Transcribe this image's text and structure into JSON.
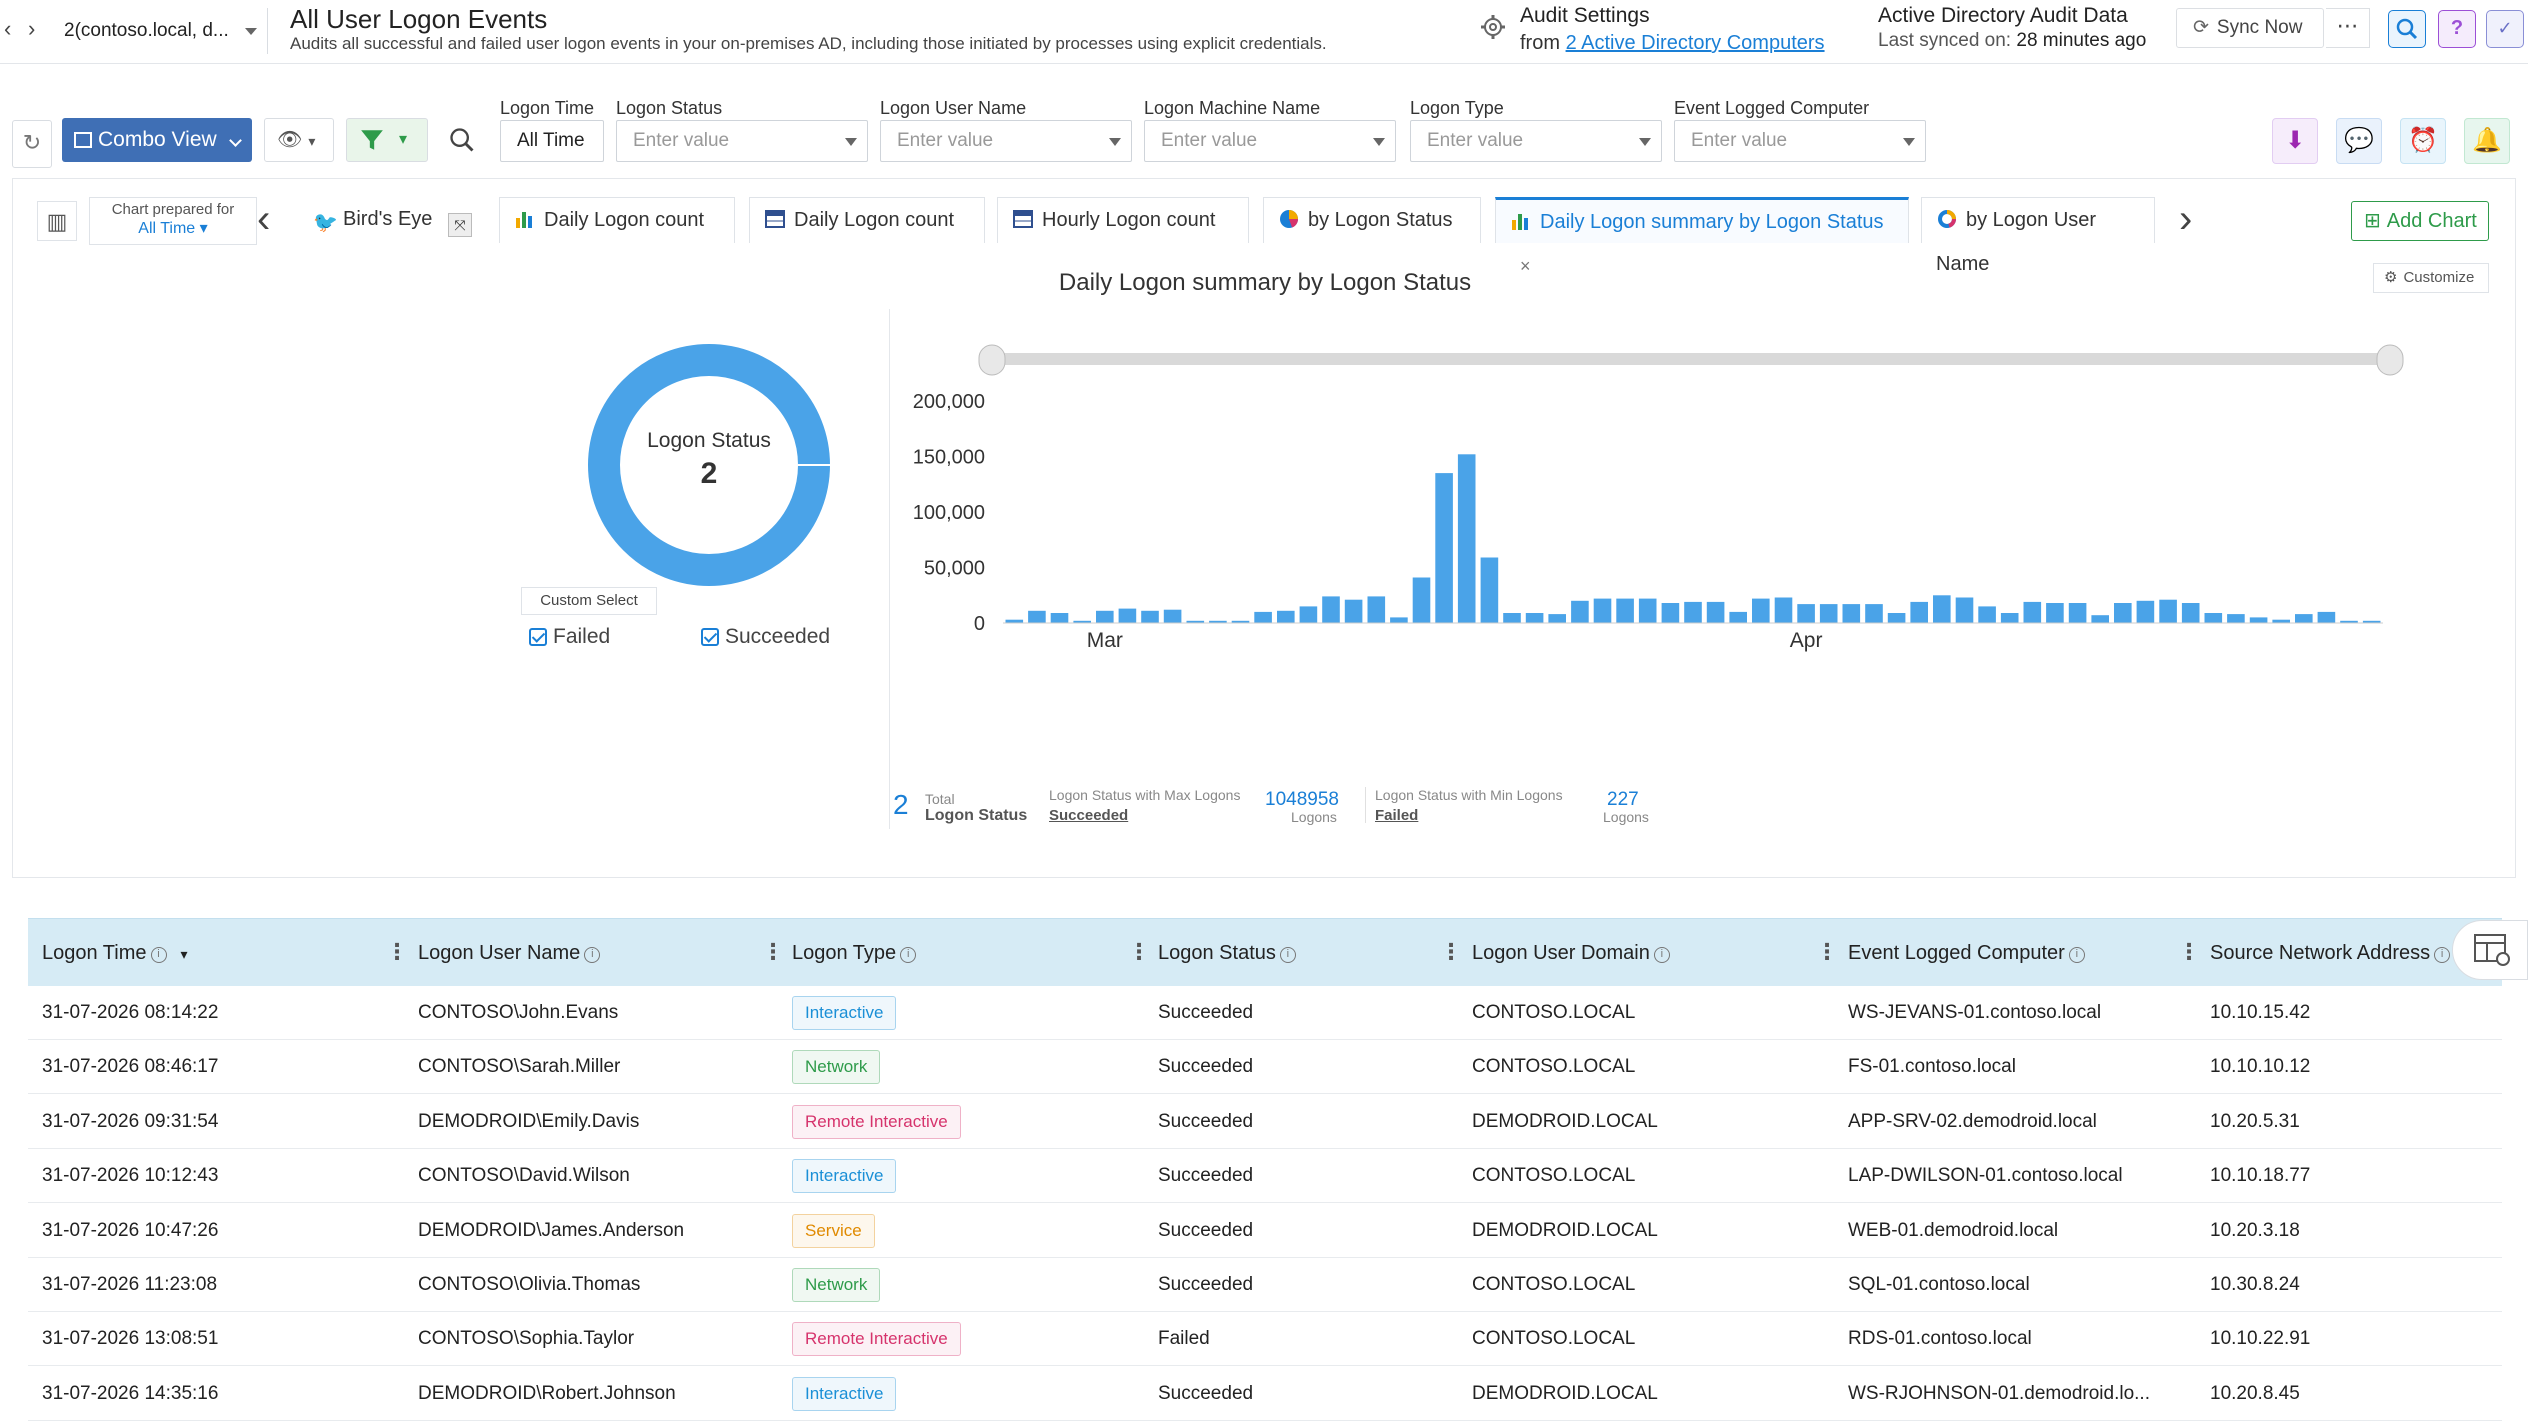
{
  "header": {
    "domain_selector": "2(contoso.local, d...",
    "title": "All User Logon Events",
    "subtitle": "Audits all successful and failed user logon events in your on-premises AD, including those initiated by processes using explicit credentials.",
    "audit_settings_title": "Audit Settings",
    "audit_from": "from",
    "audit_link": "2 Active Directory Computers",
    "ad_audit_title": "Active Directory Audit Data",
    "last_synced_label": "Last synced on:",
    "last_synced_value": "28 minutes ago",
    "sync_now": "Sync Now",
    "more": "⋯"
  },
  "toolbar": {
    "view": "Combo View",
    "filters": [
      {
        "label": "Logon Time",
        "value": "All Time"
      },
      {
        "label": "Logon Status",
        "placeholder": "Enter value"
      },
      {
        "label": "Logon User Name",
        "placeholder": "Enter value"
      },
      {
        "label": "Logon Machine Name",
        "placeholder": "Enter value"
      },
      {
        "label": "Logon Type",
        "placeholder": "Enter value"
      },
      {
        "label": "Event Logged Computer",
        "placeholder": "Enter value"
      }
    ]
  },
  "tabs": {
    "chart_prepared_for": "Chart prepared for",
    "all_time": "All Time",
    "items": [
      {
        "label": "Bird's Eye"
      },
      {
        "label": "Daily Logon count"
      },
      {
        "label": "Daily Logon count"
      },
      {
        "label": "Hourly Logon count"
      },
      {
        "label": "by Logon Status"
      },
      {
        "label": "Daily Logon summary by Logon Status"
      },
      {
        "label": "by Logon User Name"
      }
    ],
    "add_chart": "Add Chart",
    "customize": "Customize"
  },
  "donut": {
    "label": "Logon Status",
    "value": "2",
    "custom_select": "Custom Select",
    "legend": [
      "Failed",
      "Succeeded"
    ],
    "color": "#4aa3e8"
  },
  "summary": {
    "total_value": "2",
    "total_label1": "Total",
    "total_label2": "Logon Status",
    "max_label": "Logon Status with Max Logons",
    "max_name": "Succeeded",
    "max_value": "1048958",
    "max_unit": "Logons",
    "min_label": "Logon Status with Min Logons",
    "min_name": "Failed",
    "min_value": "227",
    "min_unit": "Logons"
  },
  "chart_data": {
    "type": "bar",
    "title": "Daily Logon summary by Logon Status",
    "y_ticks": [
      "0",
      "50,000",
      "100,000",
      "150,000",
      "200,000"
    ],
    "ylim": [
      0,
      200000
    ],
    "x_tick_labels": [
      "Mar",
      "Apr"
    ],
    "x_tick_index": [
      4,
      35
    ],
    "values": [
      3000,
      11000,
      9000,
      2000,
      11000,
      13000,
      11000,
      12000,
      2000,
      2000,
      2000,
      10000,
      11000,
      15000,
      24000,
      21000,
      24000,
      5000,
      41000,
      135000,
      152000,
      59000,
      9000,
      9000,
      8000,
      20000,
      22000,
      22000,
      22000,
      18000,
      19000,
      19000,
      10000,
      22000,
      23000,
      17000,
      17000,
      17000,
      17000,
      9000,
      19000,
      25000,
      23000,
      15000,
      9000,
      19000,
      18000,
      18000,
      7000,
      18000,
      20000,
      21000,
      18000,
      9000,
      8000,
      5000,
      3000,
      8000,
      10000,
      2000,
      2000
    ],
    "color": "#4aa3e8"
  },
  "table": {
    "columns": [
      "Logon Time",
      "Logon User Name",
      "Logon Type",
      "Logon Status",
      "Logon User Domain",
      "Event Logged Computer",
      "Source Network Address"
    ],
    "rows": [
      {
        "time": "31-07-2026 08:14:22",
        "user": "CONTOSO\\John.Evans",
        "type": "Interactive",
        "status": "Succeeded",
        "domain": "CONTOSO.LOCAL",
        "computer": "WS-JEVANS-01.contoso.local",
        "address": "10.10.15.42"
      },
      {
        "time": "31-07-2026 08:46:17",
        "user": "CONTOSO\\Sarah.Miller",
        "type": "Network",
        "status": "Succeeded",
        "domain": "CONTOSO.LOCAL",
        "computer": "FS-01.contoso.local",
        "address": "10.10.10.12"
      },
      {
        "time": "31-07-2026 09:31:54",
        "user": "DEMODROID\\Emily.Davis",
        "type": "Remote Interactive",
        "status": "Succeeded",
        "domain": "DEMODROID.LOCAL",
        "computer": "APP-SRV-02.demodroid.local",
        "address": "10.20.5.31"
      },
      {
        "time": "31-07-2026 10:12:43",
        "user": "CONTOSO\\David.Wilson",
        "type": "Interactive",
        "status": "Succeeded",
        "domain": "CONTOSO.LOCAL",
        "computer": "LAP-DWILSON-01.contoso.local",
        "address": "10.10.18.77"
      },
      {
        "time": "31-07-2026 10:47:26",
        "user": "DEMODROID\\James.Anderson",
        "type": "Service",
        "status": "Succeeded",
        "domain": "DEMODROID.LOCAL",
        "computer": "WEB-01.demodroid.local",
        "address": "10.20.3.18"
      },
      {
        "time": "31-07-2026 11:23:08",
        "user": "CONTOSO\\Olivia.Thomas",
        "type": "Network",
        "status": "Succeeded",
        "domain": "CONTOSO.LOCAL",
        "computer": "SQL-01.contoso.local",
        "address": "10.30.8.24"
      },
      {
        "time": "31-07-2026 13:08:51",
        "user": "CONTOSO\\Sophia.Taylor",
        "type": "Remote Interactive",
        "status": "Failed",
        "domain": "CONTOSO.LOCAL",
        "computer": "RDS-01.contoso.local",
        "address": "10.10.22.91"
      },
      {
        "time": "31-07-2026 14:35:16",
        "user": "DEMODROID\\Robert.Johnson",
        "type": "Interactive",
        "status": "Succeeded",
        "domain": "DEMODROID.LOCAL",
        "computer": "WS-RJOHNSON-01.demodroid.lo...",
        "address": "10.20.8.45"
      }
    ]
  },
  "icons": {
    "search": "search-icon",
    "help": "help-icon",
    "download": "download-icon",
    "chat": "chat-icon",
    "alarm": "alarm-icon",
    "bell": "bell-icon"
  },
  "badge_colors": {
    "Interactive": "#1a8fd6",
    "Network": "#2e9b4a",
    "Remote Interactive": "#d6336c",
    "Service": "#e08a00"
  }
}
